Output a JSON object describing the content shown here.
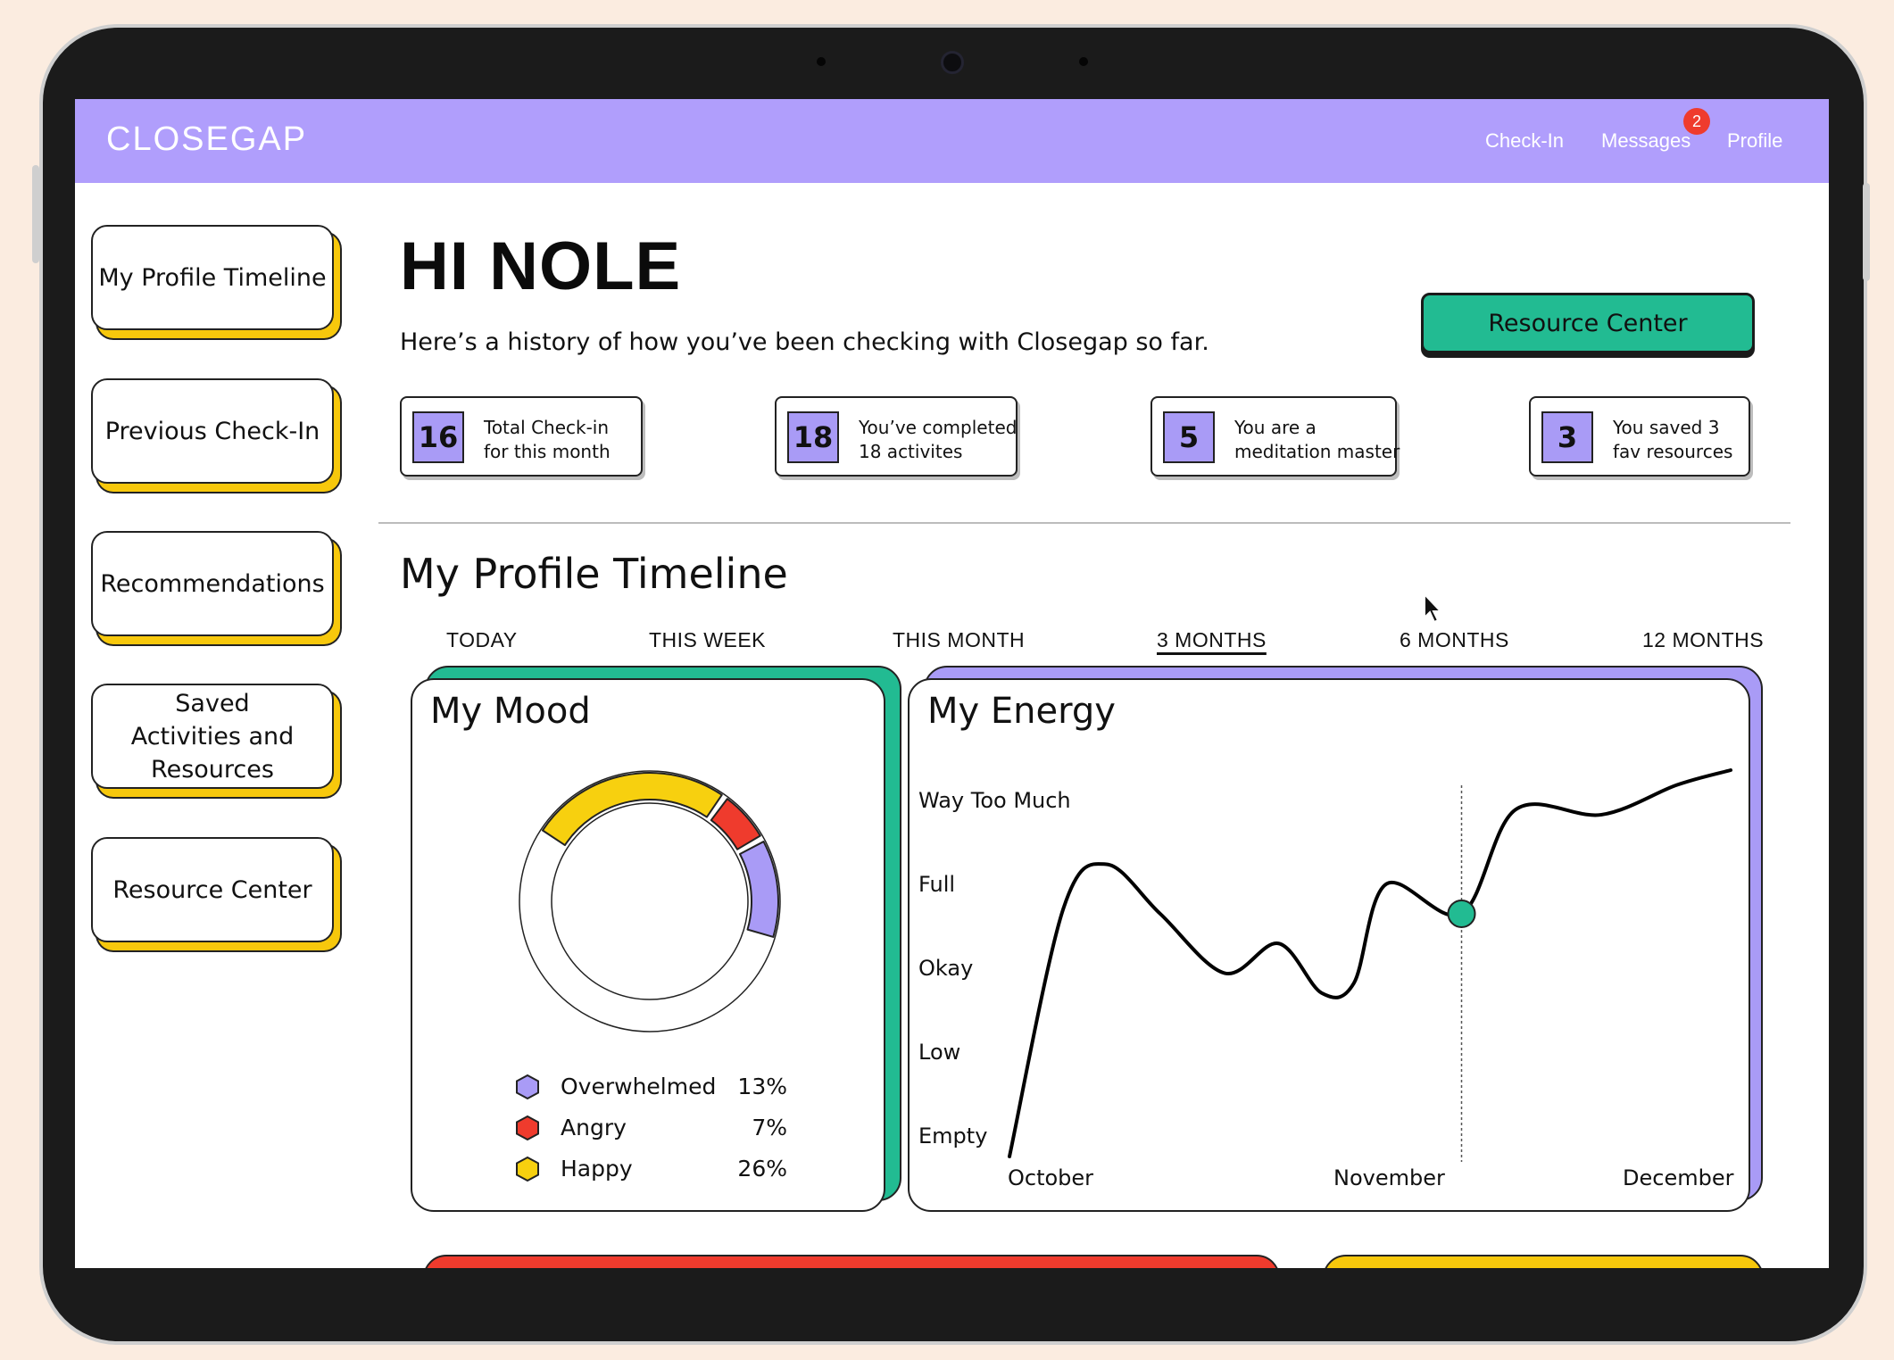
{
  "app": {
    "logo": "CLOSEGAP",
    "nav": {
      "checkin": "Check-In",
      "messages": "Messages",
      "messages_badge": "2",
      "profile": "Profile"
    }
  },
  "sidebar": {
    "items": [
      {
        "label": "My Profile Timeline"
      },
      {
        "label": "Previous Check-In"
      },
      {
        "label": "Recommendations"
      },
      {
        "label": "Saved Activities and Resources"
      },
      {
        "label": "Resource Center"
      }
    ]
  },
  "header": {
    "greeting": "HI NOLE",
    "subtitle": "Here’s a history of how you’ve been checking with Closegap so far.",
    "resource_button": "Resource Center"
  },
  "stats": [
    {
      "value": "16",
      "line1": "Total Check-in",
      "line2": "for this month"
    },
    {
      "value": "18",
      "line1": "You’ve completed",
      "line2": "18 activites"
    },
    {
      "value": "5",
      "line1": "You are a",
      "line2": "meditation master"
    },
    {
      "value": "3",
      "line1": "You saved 3",
      "line2": "fav resources"
    }
  ],
  "timeline": {
    "title": "My Profile Timeline",
    "ranges": [
      "TODAY",
      "THIS WEEK",
      "THIS MONTH",
      "3 MONTHS",
      "6 MONTHS",
      "12 MONTHS"
    ],
    "active_range": "3 MONTHS"
  },
  "mood": {
    "title": "My Mood",
    "legend": [
      {
        "label": "Overwhelmed",
        "pct": "13%",
        "color": "#a99bf6"
      },
      {
        "label": "Angry",
        "pct": "7%",
        "color": "#ef3b2d"
      },
      {
        "label": "Happy",
        "pct": "26%",
        "color": "#f7d00f"
      }
    ]
  },
  "energy": {
    "title": "My Energy",
    "y_levels": [
      "Way Too Much",
      "Full",
      "Okay",
      "Low",
      "Empty"
    ],
    "x_months": [
      "October",
      "November",
      "December"
    ]
  },
  "chart_data": [
    {
      "type": "pie",
      "title": "My Mood",
      "style": "donut",
      "slices": [
        {
          "name": "Overwhelmed",
          "value": 13,
          "color": "#a99bf6"
        },
        {
          "name": "Angry",
          "value": 7,
          "color": "#ef3b2d"
        },
        {
          "name": "Happy",
          "value": 26,
          "color": "#f7d00f"
        }
      ]
    },
    {
      "type": "line",
      "title": "My Energy",
      "categories": [
        "Empty",
        "Low",
        "Okay",
        "Full",
        "Way Too Much"
      ],
      "x": [
        "October",
        "November",
        "December"
      ],
      "ylim": [
        0,
        4
      ],
      "grid": false,
      "series": [
        {
          "color": "#000000",
          "points": [
            [
              0.0,
              0.1
            ],
            [
              0.05,
              2.6
            ],
            [
              0.09,
              3.05
            ],
            [
              0.14,
              2.55
            ],
            [
              0.2,
              1.95
            ],
            [
              0.25,
              2.25
            ],
            [
              0.29,
              1.75
            ],
            [
              0.32,
              1.85
            ],
            [
              0.35,
              2.85
            ],
            [
              0.42,
              2.55
            ],
            [
              0.47,
              3.6
            ],
            [
              0.55,
              3.55
            ],
            [
              0.62,
              3.85
            ],
            [
              0.67,
              4.0
            ]
          ],
          "x_units": "months since October 1"
        }
      ],
      "highlight": {
        "x": 0.42,
        "y": 2.55,
        "color": "#22bb92"
      }
    }
  ]
}
